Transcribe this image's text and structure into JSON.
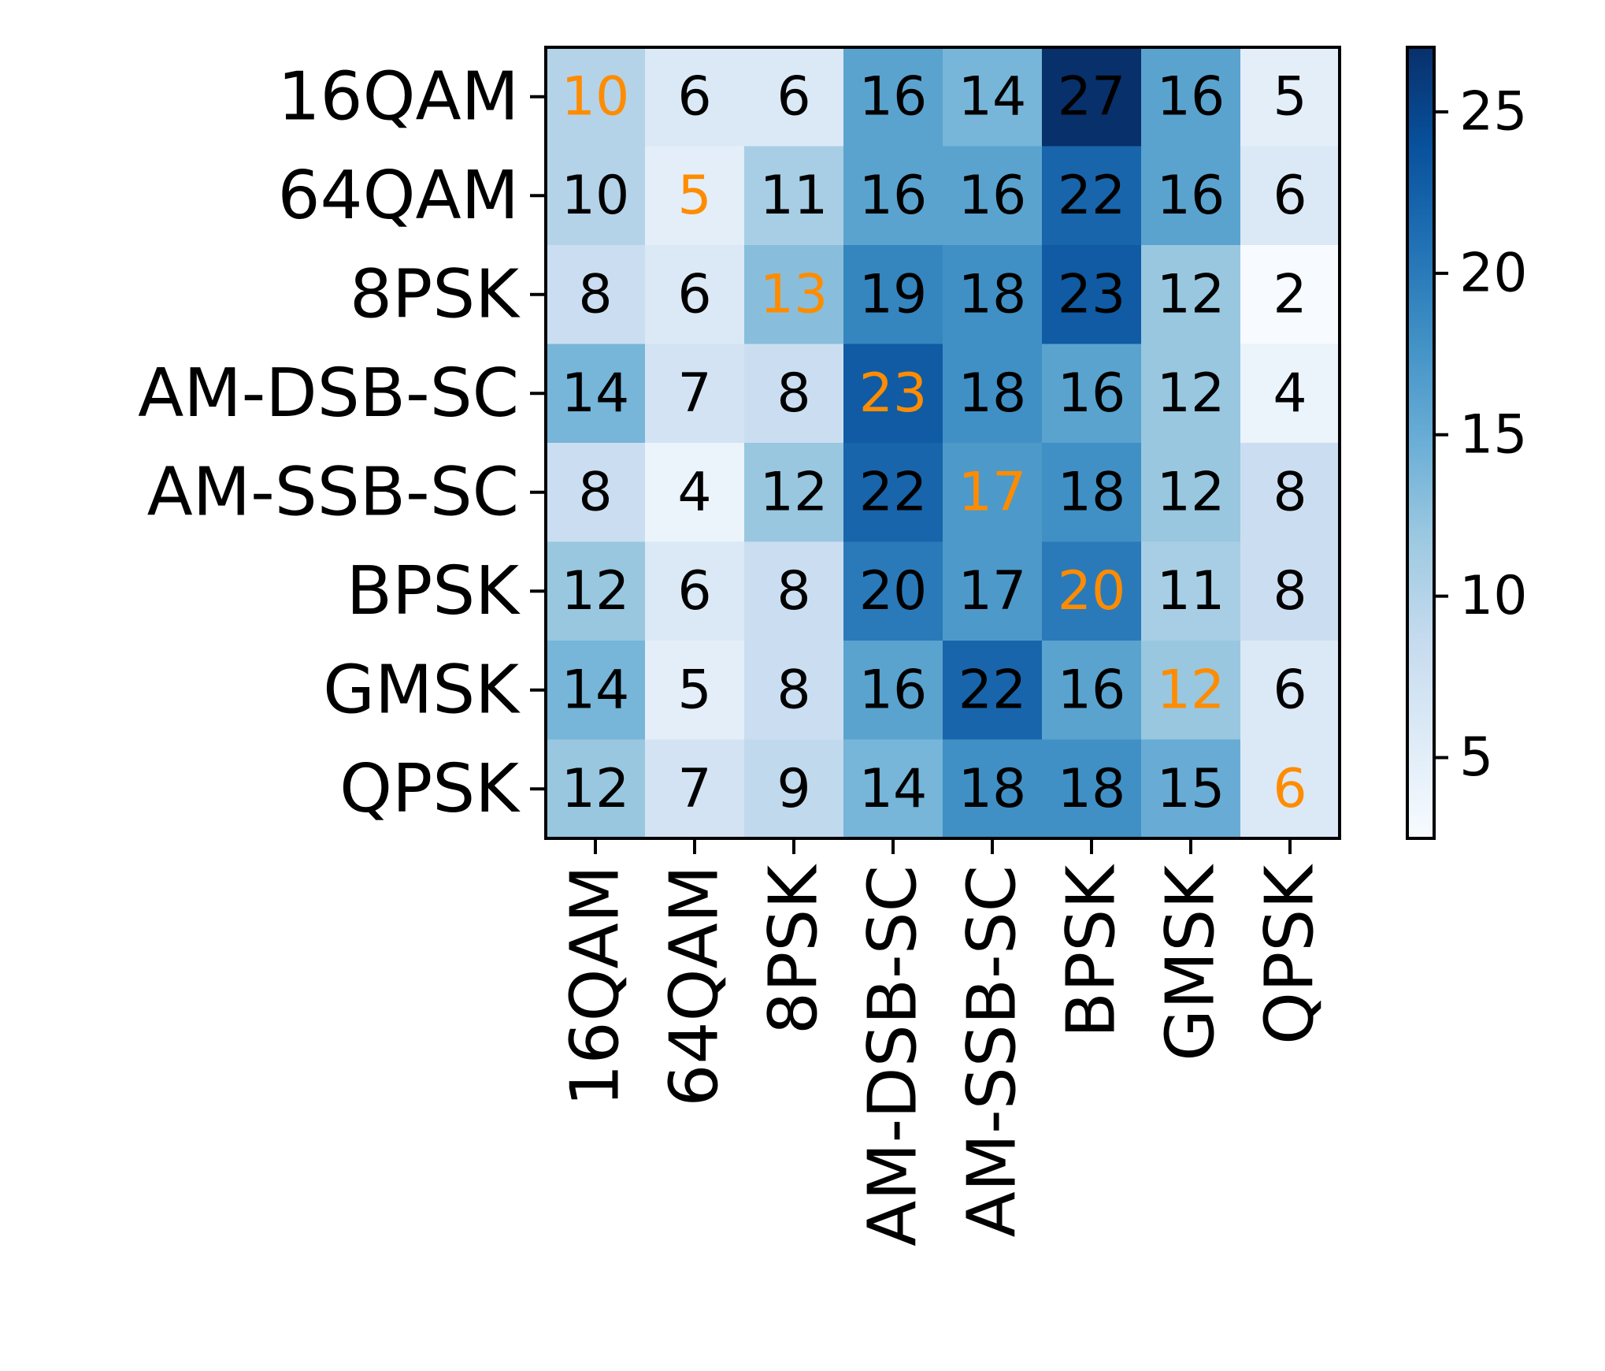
{
  "chart_data": {
    "type": "heatmap",
    "title": "",
    "xlabel": "",
    "ylabel": "",
    "x_categories": [
      "16QAM",
      "64QAM",
      "8PSK",
      "AM-DSB-SC",
      "AM-SSB-SC",
      "BPSK",
      "GMSK",
      "QPSK"
    ],
    "y_categories": [
      "16QAM",
      "64QAM",
      "8PSK",
      "AM-DSB-SC",
      "AM-SSB-SC",
      "BPSK",
      "GMSK",
      "QPSK"
    ],
    "values": [
      [
        10,
        6,
        6,
        16,
        14,
        27,
        16,
        5
      ],
      [
        10,
        5,
        11,
        16,
        16,
        22,
        16,
        6
      ],
      [
        8,
        6,
        13,
        19,
        18,
        23,
        12,
        2
      ],
      [
        14,
        7,
        8,
        23,
        18,
        16,
        12,
        4
      ],
      [
        8,
        4,
        12,
        22,
        17,
        18,
        12,
        8
      ],
      [
        12,
        6,
        8,
        20,
        17,
        20,
        11,
        8
      ],
      [
        14,
        5,
        8,
        16,
        22,
        16,
        12,
        6
      ],
      [
        12,
        7,
        9,
        14,
        18,
        18,
        15,
        6
      ]
    ],
    "colorbar": {
      "range": [
        2.5,
        27
      ],
      "ticks": [
        5,
        10,
        15,
        20,
        25
      ],
      "colormap": "Blues"
    },
    "diagonal_text_color": "#ff8c00",
    "text_color": "#000000",
    "grid": false
  }
}
